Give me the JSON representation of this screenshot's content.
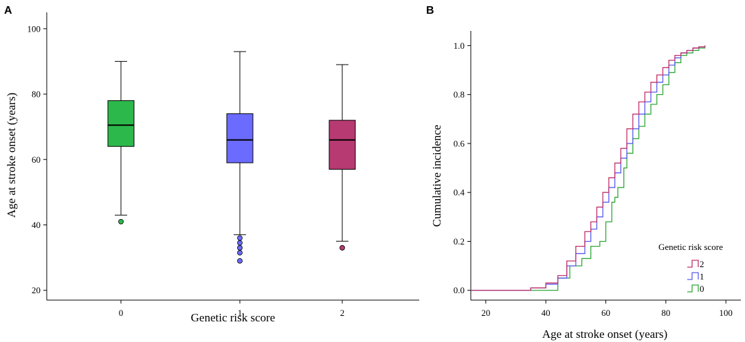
{
  "chart_data": [
    {
      "panel_label": "A",
      "type": "box",
      "categories": [
        "0",
        "1",
        "2"
      ],
      "xlabel": "Genetic risk score",
      "ylabel": "Age at stroke onset (years)",
      "ylim": [
        17,
        105
      ],
      "yticks": [
        20,
        40,
        60,
        80,
        100
      ],
      "boxes": [
        {
          "category": "0",
          "whisker_low": 43,
          "q1": 64,
          "median": 70.5,
          "q3": 78,
          "whisker_high": 90,
          "outliers": [
            41
          ],
          "color": "#2db84b"
        },
        {
          "category": "1",
          "whisker_low": 37,
          "q1": 59,
          "median": 66,
          "q3": 74,
          "whisker_high": 93,
          "outliers": [
            36,
            34.5,
            33,
            31.5,
            29
          ],
          "color": "#6b6bff"
        },
        {
          "category": "2",
          "whisker_low": 35,
          "q1": 57,
          "median": 66,
          "q3": 72,
          "whisker_high": 89,
          "outliers": [
            33
          ],
          "color": "#b83a73"
        }
      ]
    },
    {
      "panel_label": "B",
      "type": "line",
      "xlabel": "Age at stroke onset (years)",
      "ylabel": "Cumulative incidence",
      "xlim": [
        15,
        105
      ],
      "ylim": [
        -0.04,
        1.06
      ],
      "xticks": [
        20,
        40,
        60,
        80,
        100
      ],
      "yticks": [
        "0.0",
        "0.2",
        "0.4",
        "0.6",
        "0.8",
        "1.0"
      ],
      "legend_title": "Genetic risk score",
      "legend_position": "bottom-right",
      "series": [
        {
          "name": "2",
          "color": "#c0306a",
          "x": [
            15,
            29,
            35,
            40,
            44,
            47,
            50,
            53,
            55,
            57,
            59,
            61,
            63,
            65,
            67,
            69,
            71,
            73,
            75,
            77,
            79,
            81,
            83,
            85,
            87,
            89,
            91,
            93
          ],
          "y": [
            0,
            0,
            0.01,
            0.03,
            0.06,
            0.12,
            0.18,
            0.24,
            0.28,
            0.34,
            0.4,
            0.46,
            0.52,
            0.58,
            0.66,
            0.72,
            0.77,
            0.81,
            0.85,
            0.88,
            0.91,
            0.94,
            0.96,
            0.97,
            0.98,
            0.99,
            0.995,
            1.0
          ]
        },
        {
          "name": "1",
          "color": "#5a5aee",
          "x": [
            15,
            29,
            35,
            40,
            44,
            47,
            50,
            53,
            55,
            57,
            59,
            61,
            63,
            65,
            67,
            69,
            71,
            73,
            75,
            77,
            79,
            81,
            83,
            85,
            87,
            89,
            91,
            93
          ],
          "y": [
            0,
            0,
            0.01,
            0.025,
            0.05,
            0.1,
            0.15,
            0.2,
            0.25,
            0.3,
            0.36,
            0.42,
            0.48,
            0.54,
            0.6,
            0.66,
            0.72,
            0.77,
            0.81,
            0.85,
            0.88,
            0.92,
            0.95,
            0.97,
            0.98,
            0.99,
            0.995,
            1.0
          ]
        },
        {
          "name": "0",
          "color": "#2fa83a",
          "x": [
            15,
            41,
            44,
            48,
            52,
            55,
            58,
            60,
            62,
            63,
            64,
            66,
            67,
            69,
            71,
            73,
            75,
            77,
            79,
            81,
            83,
            85,
            87,
            89,
            91,
            93
          ],
          "y": [
            0,
            0,
            0.05,
            0.1,
            0.13,
            0.18,
            0.2,
            0.28,
            0.36,
            0.38,
            0.42,
            0.5,
            0.56,
            0.62,
            0.67,
            0.72,
            0.76,
            0.8,
            0.84,
            0.89,
            0.93,
            0.96,
            0.97,
            0.98,
            0.99,
            1.0
          ]
        }
      ]
    }
  ]
}
